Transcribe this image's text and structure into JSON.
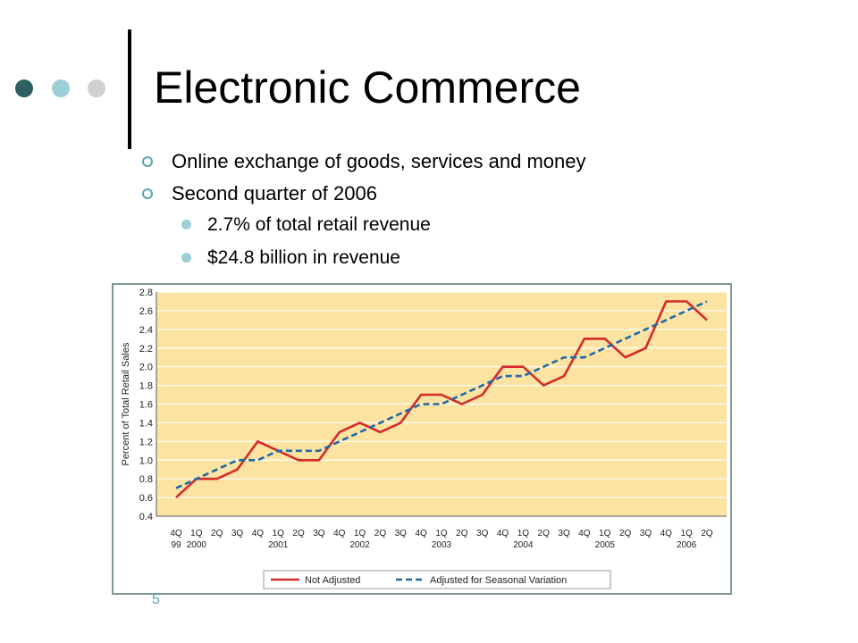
{
  "slide": {
    "title": "Electronic Commerce",
    "bullets": [
      {
        "text": "Online exchange of goods, services and money",
        "sub": []
      },
      {
        "text": "Second quarter of 2006",
        "sub": [
          "2.7% of total retail revenue",
          "$24.8 billion in revenue"
        ]
      }
    ],
    "slide_number": "5",
    "colors": {
      "dot_dark": "#2e5f63",
      "dot_mid": "#9ccfd6",
      "dot_light": "#d0d0d0",
      "accent": "#5aa5b0"
    }
  },
  "chart_data": {
    "type": "line",
    "ylabel": "Percent of Total Retail Sales",
    "ylim": [
      0.4,
      2.8
    ],
    "yticks": [
      "0.4",
      "0.6",
      "0.8",
      "1.0",
      "1.2",
      "1.4",
      "1.6",
      "1.8",
      "2.0",
      "2.2",
      "2.4",
      "2.6",
      "2.8"
    ],
    "x": [
      "4Q99",
      "1Q00",
      "2Q00",
      "3Q00",
      "4Q00",
      "1Q01",
      "2Q01",
      "3Q01",
      "4Q01",
      "1Q02",
      "2Q02",
      "3Q02",
      "4Q02",
      "1Q03",
      "2Q03",
      "3Q03",
      "4Q03",
      "1Q04",
      "2Q04",
      "3Q04",
      "4Q04",
      "1Q05",
      "2Q05",
      "3Q05",
      "4Q05",
      "1Q06",
      "2Q06"
    ],
    "quarter_labels": [
      "4Q",
      "1Q",
      "2Q",
      "3Q",
      "4Q",
      "1Q",
      "2Q",
      "3Q",
      "4Q",
      "1Q",
      "2Q",
      "3Q",
      "4Q",
      "1Q",
      "2Q",
      "3Q",
      "4Q",
      "1Q",
      "2Q",
      "3Q",
      "4Q",
      "1Q",
      "2Q",
      "3Q",
      "4Q",
      "1Q",
      "2Q"
    ],
    "year_labels": [
      {
        "index": 0,
        "label": "99"
      },
      {
        "index": 1,
        "label": "2000"
      },
      {
        "index": 5,
        "label": "2001"
      },
      {
        "index": 9,
        "label": "2002"
      },
      {
        "index": 13,
        "label": "2003"
      },
      {
        "index": 17,
        "label": "2004"
      },
      {
        "index": 21,
        "label": "2005"
      },
      {
        "index": 25,
        "label": "2006"
      }
    ],
    "series": [
      {
        "name": "Not Adjusted",
        "color": "#d42a2a",
        "style": "solid",
        "values": [
          0.6,
          0.8,
          0.8,
          0.9,
          1.2,
          1.1,
          1.0,
          1.0,
          1.3,
          1.4,
          1.3,
          1.4,
          1.7,
          1.7,
          1.6,
          1.7,
          2.0,
          2.0,
          1.8,
          1.9,
          2.3,
          2.3,
          2.1,
          2.2,
          2.7,
          2.7,
          2.5
        ]
      },
      {
        "name": "Adjusted for Seasonal Variation",
        "color": "#1f6aa6",
        "style": "dashed",
        "values": [
          0.7,
          0.8,
          0.9,
          1.0,
          1.0,
          1.1,
          1.1,
          1.1,
          1.2,
          1.3,
          1.4,
          1.5,
          1.6,
          1.6,
          1.7,
          1.8,
          1.9,
          1.9,
          2.0,
          2.1,
          2.1,
          2.2,
          2.3,
          2.4,
          2.5,
          2.6,
          2.7
        ]
      }
    ],
    "legend_position": "bottom",
    "grid": true,
    "background": "#fde3a2",
    "grid_color": "#ffffff"
  }
}
